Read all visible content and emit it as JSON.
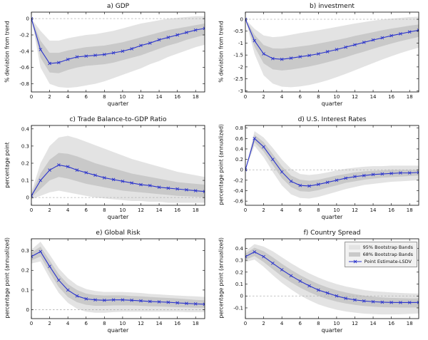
{
  "figure": {
    "kind": "impulse-response-panel-figure",
    "rows": 3,
    "columns": 2
  },
  "colors": {
    "band95": "#e3e3e3",
    "band68": "#c9c9c9",
    "line": "#2a33cc",
    "zero_line": "#b0b0b0",
    "axis": "#000000"
  },
  "legend": {
    "items": [
      {
        "label": "95% Bootstrap Bands",
        "swatch": "band95"
      },
      {
        "label": "68% Bootstrap Bands",
        "swatch": "band68"
      },
      {
        "label": "Point Estimate-LSDV",
        "swatch": "line"
      }
    ]
  },
  "chart_data": [
    {
      "type": "line",
      "id": "gdp",
      "title": "a) GDP",
      "ylabel": "% deviation from trend",
      "xlabel": "quarter",
      "x": [
        0,
        1,
        2,
        3,
        4,
        5,
        6,
        7,
        8,
        9,
        10,
        11,
        12,
        13,
        14,
        15,
        16,
        17,
        18,
        19
      ],
      "xlim": [
        0,
        19
      ],
      "xticks": [
        0,
        2,
        4,
        6,
        8,
        10,
        12,
        14,
        16,
        18
      ],
      "ylim": [
        -0.9,
        0.08
      ],
      "yticks": [
        0,
        -0.2,
        -0.4,
        -0.6,
        -0.8
      ],
      "point_estimate": [
        0,
        -0.38,
        -0.55,
        -0.54,
        -0.5,
        -0.47,
        -0.46,
        -0.45,
        -0.44,
        -0.42,
        -0.4,
        -0.37,
        -0.33,
        -0.3,
        -0.26,
        -0.23,
        -0.2,
        -0.17,
        -0.14,
        -0.12
      ],
      "band95_upper": [
        0,
        -0.15,
        -0.27,
        -0.27,
        -0.24,
        -0.22,
        -0.2,
        -0.19,
        -0.17,
        -0.15,
        -0.12,
        -0.09,
        -0.06,
        -0.04,
        -0.02,
        0,
        0.01,
        0.02,
        0.03,
        0.03
      ],
      "band95_lower": [
        0,
        -0.6,
        -0.8,
        -0.84,
        -0.85,
        -0.84,
        -0.82,
        -0.8,
        -0.77,
        -0.73,
        -0.69,
        -0.65,
        -0.61,
        -0.56,
        -0.52,
        -0.47,
        -0.43,
        -0.39,
        -0.35,
        -0.32
      ],
      "band68_upper": [
        0,
        -0.27,
        -0.42,
        -0.42,
        -0.39,
        -0.37,
        -0.35,
        -0.34,
        -0.33,
        -0.31,
        -0.29,
        -0.26,
        -0.23,
        -0.2,
        -0.17,
        -0.14,
        -0.12,
        -0.1,
        -0.08,
        -0.06
      ],
      "band68_lower": [
        0,
        -0.48,
        -0.66,
        -0.67,
        -0.63,
        -0.6,
        -0.58,
        -0.57,
        -0.56,
        -0.54,
        -0.51,
        -0.48,
        -0.45,
        -0.41,
        -0.37,
        -0.33,
        -0.3,
        -0.26,
        -0.23,
        -0.2
      ]
    },
    {
      "type": "line",
      "id": "investment",
      "title": "b) investment",
      "ylabel": "% deviation from trend",
      "xlabel": "quarter",
      "x": [
        0,
        1,
        2,
        3,
        4,
        5,
        6,
        7,
        8,
        9,
        10,
        11,
        12,
        13,
        14,
        15,
        16,
        17,
        18,
        19
      ],
      "xlim": [
        0,
        19
      ],
      "xticks": [
        0,
        2,
        4,
        6,
        8,
        10,
        12,
        14,
        16,
        18
      ],
      "ylim": [
        -3.05,
        0.3
      ],
      "yticks": [
        0,
        -0.5,
        -1,
        -1.5,
        -2,
        -2.5,
        -3
      ],
      "point_estimate": [
        0,
        -0.9,
        -1.45,
        -1.65,
        -1.68,
        -1.63,
        -1.57,
        -1.52,
        -1.45,
        -1.36,
        -1.27,
        -1.17,
        -1.07,
        -0.97,
        -0.87,
        -0.78,
        -0.69,
        -0.61,
        -0.53,
        -0.46
      ],
      "band95_upper": [
        0,
        -0.4,
        -0.68,
        -0.75,
        -0.72,
        -0.65,
        -0.58,
        -0.52,
        -0.46,
        -0.39,
        -0.32,
        -0.25,
        -0.18,
        -0.12,
        -0.06,
        -0.01,
        0.03,
        0.06,
        0.09,
        0.11
      ],
      "band95_lower": [
        0,
        -1.45,
        -2.35,
        -2.7,
        -2.83,
        -2.85,
        -2.82,
        -2.76,
        -2.67,
        -2.56,
        -2.43,
        -2.29,
        -2.14,
        -1.99,
        -1.84,
        -1.69,
        -1.55,
        -1.42,
        -1.3,
        -1.19
      ],
      "band68_upper": [
        0,
        -0.65,
        -1.08,
        -1.22,
        -1.23,
        -1.19,
        -1.14,
        -1.09,
        -1.02,
        -0.95,
        -0.87,
        -0.79,
        -0.7,
        -0.62,
        -0.54,
        -0.46,
        -0.39,
        -0.33,
        -0.27,
        -0.22
      ],
      "band68_lower": [
        0,
        -1.15,
        -1.85,
        -2.1,
        -2.15,
        -2.11,
        -2.05,
        -1.98,
        -1.9,
        -1.8,
        -1.7,
        -1.59,
        -1.47,
        -1.36,
        -1.24,
        -1.13,
        -1.02,
        -0.92,
        -0.83,
        -0.74
      ]
    },
    {
      "type": "line",
      "id": "trade-balance",
      "title": "c) Trade Balance-to-GDP Ratio",
      "ylabel": "percentage point",
      "xlabel": "quarter",
      "x": [
        0,
        1,
        2,
        3,
        4,
        5,
        6,
        7,
        8,
        9,
        10,
        11,
        12,
        13,
        14,
        15,
        16,
        17,
        18,
        19
      ],
      "xlim": [
        0,
        19
      ],
      "xticks": [
        0,
        2,
        4,
        6,
        8,
        10,
        12,
        14,
        16,
        18
      ],
      "ylim": [
        -0.045,
        0.42
      ],
      "yticks": [
        0,
        0.1,
        0.2,
        0.3,
        0.4
      ],
      "point_estimate": [
        0.01,
        0.1,
        0.16,
        0.19,
        0.18,
        0.16,
        0.145,
        0.13,
        0.115,
        0.105,
        0.095,
        0.085,
        0.075,
        0.07,
        0.06,
        0.055,
        0.05,
        0.045,
        0.04,
        0.035
      ],
      "band95_upper": [
        0.03,
        0.2,
        0.3,
        0.35,
        0.36,
        0.345,
        0.325,
        0.305,
        0.285,
        0.265,
        0.245,
        0.225,
        0.21,
        0.195,
        0.18,
        0.165,
        0.15,
        0.14,
        0.13,
        0.12
      ],
      "band95_lower": [
        -0.01,
        0.01,
        0.03,
        0.04,
        0.03,
        0.02,
        0.01,
        0,
        -0.005,
        -0.01,
        -0.015,
        -0.02,
        -0.02,
        -0.025,
        -0.025,
        -0.03,
        -0.03,
        -0.03,
        -0.03,
        -0.03
      ],
      "band68_upper": [
        0.02,
        0.14,
        0.22,
        0.26,
        0.255,
        0.24,
        0.22,
        0.2,
        0.185,
        0.17,
        0.155,
        0.14,
        0.13,
        0.12,
        0.11,
        0.1,
        0.09,
        0.085,
        0.08,
        0.075
      ],
      "band68_lower": [
        0,
        0.05,
        0.1,
        0.12,
        0.11,
        0.095,
        0.08,
        0.07,
        0.06,
        0.05,
        0.04,
        0.035,
        0.03,
        0.025,
        0.02,
        0.015,
        0.01,
        0.008,
        0.005,
        0.003
      ]
    },
    {
      "type": "line",
      "id": "us-interest-rates",
      "title": "d) U.S. Interest Rates",
      "ylabel": "percentage point (annualized)",
      "xlabel": "quarter",
      "x": [
        0,
        1,
        2,
        3,
        4,
        5,
        6,
        7,
        8,
        9,
        10,
        11,
        12,
        13,
        14,
        15,
        16,
        17,
        18,
        19
      ],
      "xlim": [
        0,
        19
      ],
      "xticks": [
        0,
        2,
        4,
        6,
        8,
        10,
        12,
        14,
        16,
        18
      ],
      "ylim": [
        -0.68,
        0.85
      ],
      "yticks": [
        0.8,
        0.6,
        0.4,
        0.2,
        0,
        -0.2,
        -0.4,
        -0.6
      ],
      "point_estimate": [
        0,
        0.6,
        0.44,
        0.2,
        -0.04,
        -0.22,
        -0.3,
        -0.31,
        -0.28,
        -0.24,
        -0.2,
        -0.16,
        -0.13,
        -0.11,
        -0.09,
        -0.08,
        -0.07,
        -0.06,
        -0.06,
        -0.05
      ],
      "band95_upper": [
        0,
        0.74,
        0.62,
        0.42,
        0.2,
        0.02,
        -0.08,
        -0.1,
        -0.08,
        -0.05,
        -0.01,
        0.02,
        0.04,
        0.06,
        0.07,
        0.07,
        0.08,
        0.08,
        0.08,
        0.08
      ],
      "band95_lower": [
        0,
        0.46,
        0.24,
        -0.04,
        -0.3,
        -0.47,
        -0.54,
        -0.55,
        -0.52,
        -0.47,
        -0.42,
        -0.37,
        -0.33,
        -0.29,
        -0.27,
        -0.25,
        -0.23,
        -0.22,
        -0.21,
        -0.2
      ],
      "band68_upper": [
        0,
        0.67,
        0.53,
        0.3,
        0.07,
        -0.11,
        -0.19,
        -0.21,
        -0.19,
        -0.15,
        -0.11,
        -0.08,
        -0.05,
        -0.03,
        -0.02,
        -0.01,
        0,
        0,
        0,
        0
      ],
      "band68_lower": [
        0,
        0.53,
        0.35,
        0.09,
        -0.16,
        -0.33,
        -0.41,
        -0.42,
        -0.39,
        -0.34,
        -0.3,
        -0.25,
        -0.22,
        -0.19,
        -0.17,
        -0.15,
        -0.14,
        -0.13,
        -0.12,
        -0.11
      ]
    },
    {
      "type": "line",
      "id": "global-risk",
      "title": "e) Global Risk",
      "ylabel": "percentage point (annualized)",
      "xlabel": "quarter",
      "x": [
        0,
        1,
        2,
        3,
        4,
        5,
        6,
        7,
        8,
        9,
        10,
        11,
        12,
        13,
        14,
        15,
        16,
        17,
        18,
        19
      ],
      "xlim": [
        0,
        19
      ],
      "xticks": [
        0,
        2,
        4,
        6,
        8,
        10,
        12,
        14,
        16,
        18
      ],
      "ylim": [
        -0.045,
        0.36
      ],
      "yticks": [
        0.3,
        0.2,
        0.1,
        0
      ],
      "point_estimate": [
        0.27,
        0.295,
        0.22,
        0.15,
        0.1,
        0.07,
        0.055,
        0.05,
        0.048,
        0.05,
        0.05,
        0.048,
        0.045,
        0.042,
        0.04,
        0.038,
        0.035,
        0.032,
        0.03,
        0.028
      ],
      "band95_upper": [
        0.305,
        0.345,
        0.28,
        0.21,
        0.16,
        0.125,
        0.105,
        0.095,
        0.09,
        0.09,
        0.09,
        0.088,
        0.085,
        0.08,
        0.078,
        0.075,
        0.072,
        0.07,
        0.068,
        0.065
      ],
      "band95_lower": [
        0.235,
        0.245,
        0.16,
        0.085,
        0.035,
        0.005,
        -0.01,
        -0.015,
        -0.015,
        -0.012,
        -0.01,
        -0.01,
        -0.01,
        -0.01,
        -0.01,
        -0.01,
        -0.01,
        -0.012,
        -0.012,
        -0.012
      ],
      "band68_upper": [
        0.29,
        0.32,
        0.25,
        0.18,
        0.13,
        0.1,
        0.082,
        0.075,
        0.072,
        0.073,
        0.073,
        0.07,
        0.068,
        0.065,
        0.062,
        0.06,
        0.057,
        0.054,
        0.05,
        0.048
      ],
      "band68_lower": [
        0.25,
        0.27,
        0.19,
        0.115,
        0.065,
        0.038,
        0.025,
        0.02,
        0.02,
        0.022,
        0.022,
        0.022,
        0.02,
        0.018,
        0.017,
        0.015,
        0.013,
        0.012,
        0.01,
        0.01
      ]
    },
    {
      "type": "line",
      "id": "country-spread",
      "title": "f) Country Spread",
      "ylabel": "percentage point (annualized)",
      "xlabel": "quarter",
      "x": [
        0,
        1,
        2,
        3,
        4,
        5,
        6,
        7,
        8,
        9,
        10,
        11,
        12,
        13,
        14,
        15,
        16,
        17,
        18,
        19
      ],
      "xlim": [
        0,
        19
      ],
      "xticks": [
        0,
        2,
        4,
        6,
        8,
        10,
        12,
        14,
        16,
        18
      ],
      "ylim": [
        -0.19,
        0.48
      ],
      "yticks": [
        0.4,
        0.3,
        0.2,
        0.1,
        0,
        -0.1
      ],
      "point_estimate": [
        0.33,
        0.37,
        0.33,
        0.275,
        0.22,
        0.17,
        0.125,
        0.085,
        0.05,
        0.025,
        0,
        -0.02,
        -0.033,
        -0.042,
        -0.048,
        -0.052,
        -0.054,
        -0.055,
        -0.055,
        -0.054
      ],
      "band95_upper": [
        0.375,
        0.435,
        0.415,
        0.375,
        0.325,
        0.275,
        0.23,
        0.19,
        0.155,
        0.125,
        0.1,
        0.08,
        0.065,
        0.05,
        0.04,
        0.035,
        0.03,
        0.025,
        0.022,
        0.02
      ],
      "band95_lower": [
        0.285,
        0.305,
        0.245,
        0.175,
        0.11,
        0.055,
        0.005,
        -0.035,
        -0.07,
        -0.095,
        -0.115,
        -0.13,
        -0.14,
        -0.148,
        -0.152,
        -0.155,
        -0.155,
        -0.153,
        -0.15,
        -0.147
      ],
      "band68_upper": [
        0.355,
        0.405,
        0.375,
        0.325,
        0.27,
        0.22,
        0.175,
        0.135,
        0.1,
        0.072,
        0.048,
        0.03,
        0.015,
        0.003,
        -0.005,
        -0.012,
        -0.016,
        -0.018,
        -0.02,
        -0.02
      ],
      "band68_lower": [
        0.305,
        0.335,
        0.285,
        0.225,
        0.165,
        0.115,
        0.07,
        0.032,
        0,
        -0.026,
        -0.047,
        -0.063,
        -0.075,
        -0.084,
        -0.09,
        -0.094,
        -0.096,
        -0.097,
        -0.097,
        -0.096
      ]
    }
  ]
}
